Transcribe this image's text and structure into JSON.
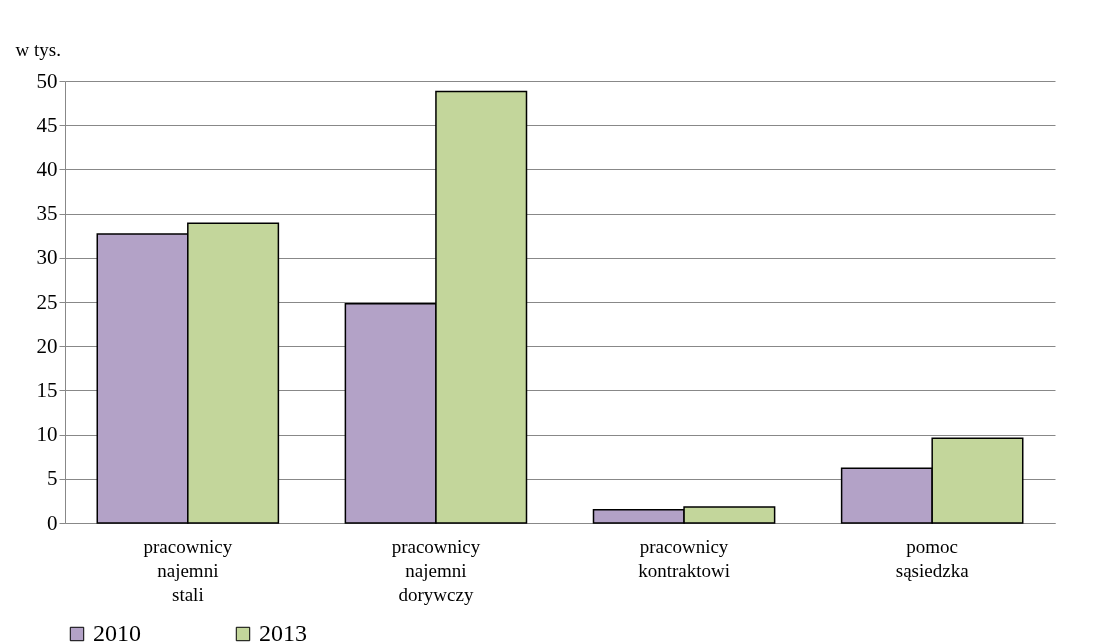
{
  "chart_data": {
    "type": "bar",
    "ylabel": "w tys.",
    "categories": [
      "pracownicy\nnajemni\nstali",
      "pracownicy\nnajemni\ndorywczy",
      "pracownicy\nkontraktowi",
      "pomoc\nsąsiedzka"
    ],
    "series": [
      {
        "name": "2010",
        "color": "#b3a2c7",
        "values": [
          32.7,
          24.8,
          1.5,
          6.2
        ]
      },
      {
        "name": "2013",
        "color": "#c3d69b",
        "values": [
          33.9,
          48.8,
          1.8,
          9.6
        ]
      }
    ],
    "ylim": [
      0,
      50
    ],
    "yticks": [
      0,
      5,
      10,
      15,
      20,
      25,
      30,
      35,
      40,
      45,
      50
    ],
    "grid": "y",
    "legend": "bottom"
  }
}
